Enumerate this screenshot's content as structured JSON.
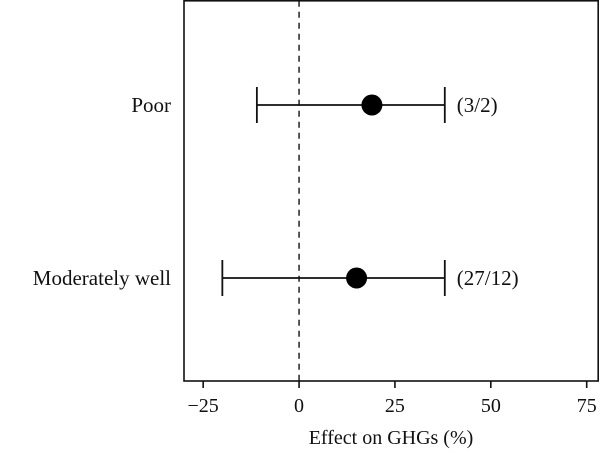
{
  "chart_data": {
    "type": "scatter",
    "subtype": "forest-plot",
    "xlabel": "Effect on GHGs (%)",
    "ylabel": "",
    "xlim": [
      -30,
      78
    ],
    "xticks": [
      -25,
      0,
      25,
      50,
      75
    ],
    "xtick_labels": [
      "−25",
      "0",
      "25",
      "50",
      "75"
    ],
    "reference_line": 0,
    "grid": false,
    "rows": [
      {
        "label": "Poor",
        "estimate": 19,
        "ci_low": -11,
        "ci_high": 38,
        "count_label": "(3/2)"
      },
      {
        "label": "Moderately well",
        "estimate": 15,
        "ci_low": -20,
        "ci_high": 38,
        "count_label": "(27/12)"
      }
    ]
  }
}
